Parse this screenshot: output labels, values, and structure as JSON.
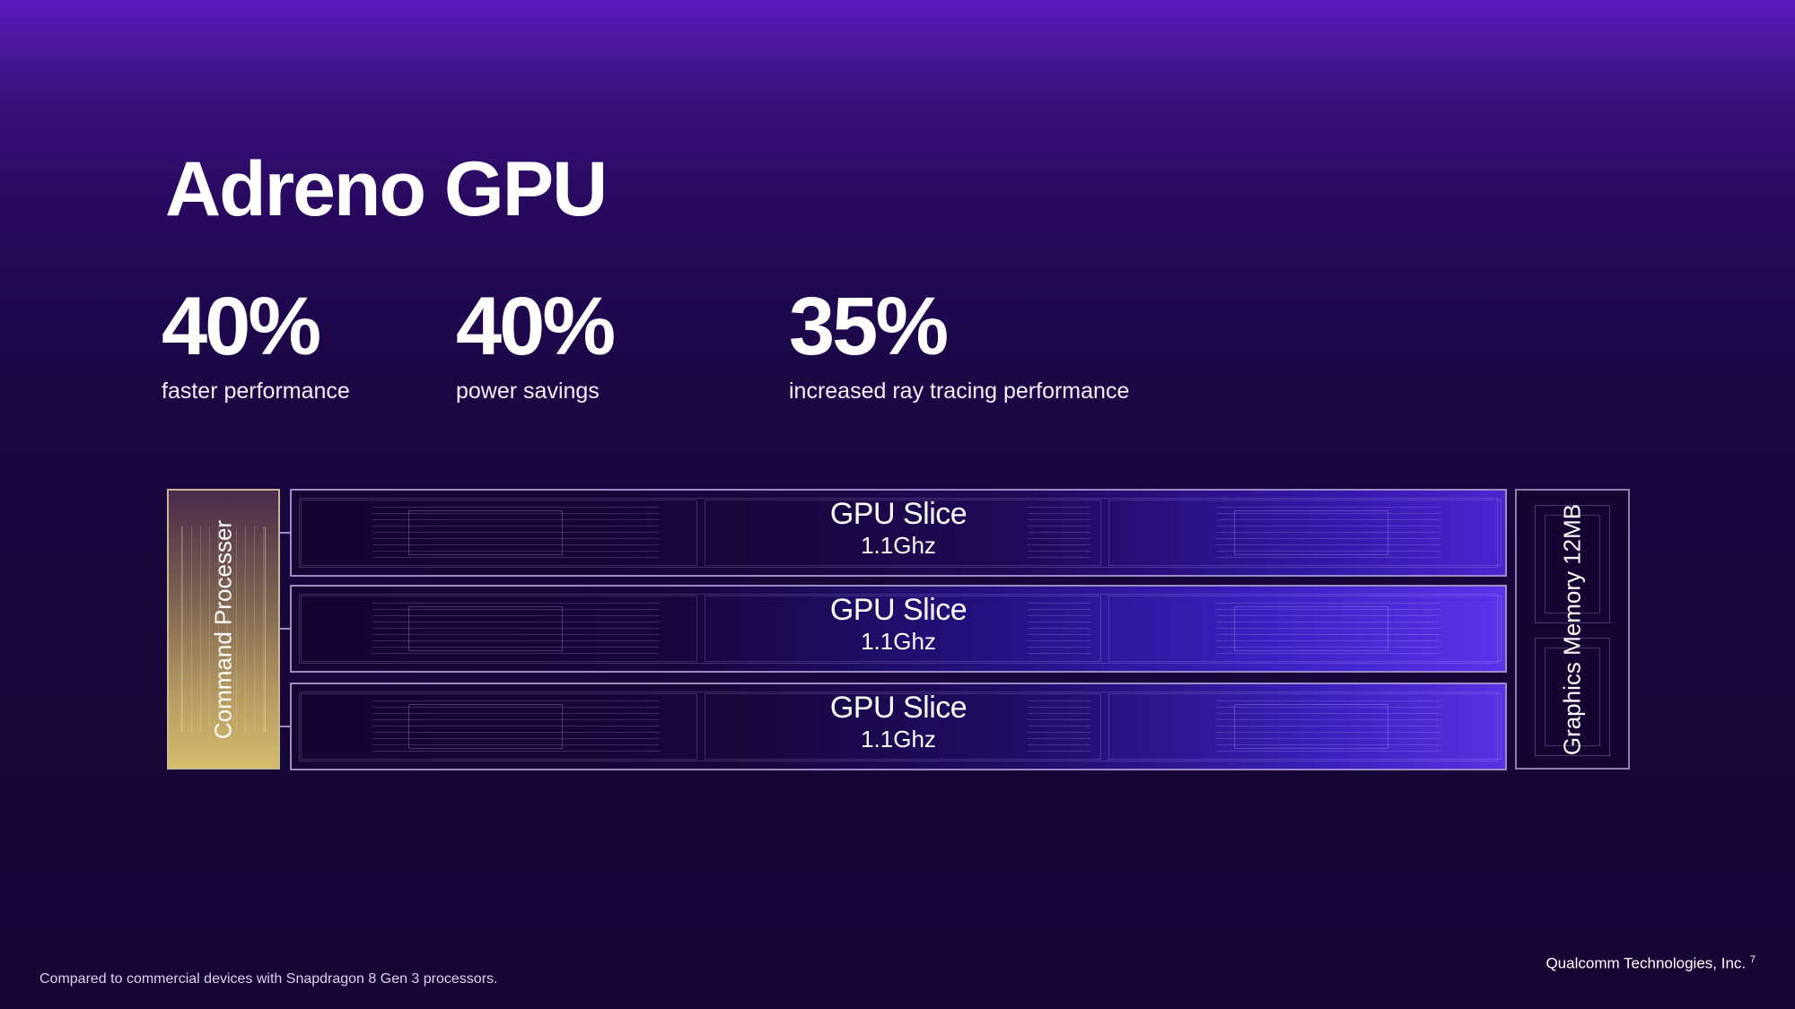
{
  "title": "Adreno GPU",
  "stats": [
    {
      "value": "40%",
      "label": "faster performance"
    },
    {
      "value": "40%",
      "label": "power savings"
    },
    {
      "value": "35%",
      "label": "increased ray tracing performance"
    }
  ],
  "diagram": {
    "command_processor": "Command Processer",
    "slices": [
      {
        "name": "GPU Slice",
        "freq": "1.1Ghz"
      },
      {
        "name": "GPU Slice",
        "freq": "1.1Ghz"
      },
      {
        "name": "GPU Slice",
        "freq": "1.1Ghz"
      }
    ],
    "memory": "Graphics Memory 12MB"
  },
  "footnote": "Compared to commercial devices with Snapdragon 8 Gen 3 processors.",
  "company": "Qualcomm Technologies, Inc.",
  "page_number": "7"
}
